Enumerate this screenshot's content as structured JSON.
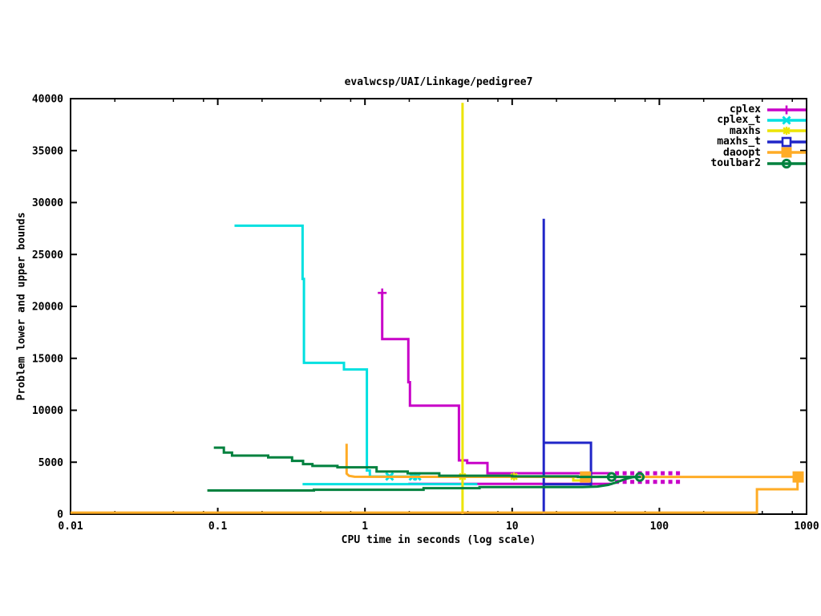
{
  "chart_data": {
    "type": "line",
    "title": "evalwcsp/UAI/Linkage/pedigree7",
    "xlabel": "CPU time in seconds (log scale)",
    "ylabel": "Problem lower and upper bounds",
    "x_scale": "log",
    "grid": false,
    "legend_position": "top-right-inside",
    "xlim": [
      0.01,
      1000
    ],
    "ylim": [
      0,
      40000
    ],
    "x_ticks": [
      {
        "v": 0.01,
        "l": "0.01"
      },
      {
        "v": 0.1,
        "l": "0.1"
      },
      {
        "v": 1,
        "l": "1"
      },
      {
        "v": 10,
        "l": "10"
      },
      {
        "v": 100,
        "l": "100"
      },
      {
        "v": 1000,
        "l": "1000"
      }
    ],
    "x_minor_mults": [
      2,
      5,
      8
    ],
    "y_ticks": [
      {
        "v": 0,
        "l": "0"
      },
      {
        "v": 5000,
        "l": "5000"
      },
      {
        "v": 10000,
        "l": "10000"
      },
      {
        "v": 15000,
        "l": "15000"
      },
      {
        "v": 20000,
        "l": "20000"
      },
      {
        "v": 25000,
        "l": "25000"
      },
      {
        "v": 30000,
        "l": "30000"
      },
      {
        "v": 35000,
        "l": "35000"
      },
      {
        "v": 40000,
        "l": "40000"
      }
    ],
    "series": [
      {
        "name": "cplex",
        "color": "#c800c8",
        "marker": "plus",
        "lines": [
          {
            "points": [
              [
                1.31,
                21300
              ],
              [
                1.31,
                16860
              ],
              [
                1.97,
                16860
              ],
              [
                1.97,
                12700
              ],
              [
                2.02,
                12700
              ],
              [
                2.02,
                10450
              ],
              [
                4.35,
                10450
              ],
              [
                4.35,
                5170
              ],
              [
                4.95,
                5170
              ],
              [
                4.95,
                4930
              ],
              [
                6.8,
                4930
              ],
              [
                6.8,
                3940
              ],
              [
                48,
                3940
              ]
            ]
          },
          {
            "points": [
              [
                50,
                3940
              ],
              [
                143,
                3940
              ]
            ],
            "dash": true,
            "width": 5
          },
          {
            "points": [
              [
                1.97,
                2910
              ],
              [
                48,
                2910
              ]
            ]
          },
          {
            "points": [
              [
                50,
                3110
              ],
              [
                143,
                3110
              ]
            ],
            "dash": true,
            "width": 5
          }
        ],
        "markers": [
          [
            1.31,
            21300
          ]
        ]
      },
      {
        "name": "cplex_t",
        "color": "#00e0e0",
        "marker": "cross",
        "lines": [
          {
            "points": [
              [
                0.13,
                27770
              ],
              [
                0.377,
                27770
              ],
              [
                0.377,
                22650
              ],
              [
                0.385,
                22650
              ],
              [
                0.385,
                14560
              ],
              [
                0.72,
                14560
              ],
              [
                0.72,
                13930
              ],
              [
                1.03,
                13930
              ],
              [
                1.03,
                4200
              ],
              [
                1.08,
                4200
              ],
              [
                1.08,
                3620
              ],
              [
                2.35,
                3620
              ]
            ]
          },
          {
            "points": [
              [
                0.377,
                2890
              ],
              [
                5.8,
                2890
              ]
            ]
          }
        ],
        "markers": [
          [
            1.47,
            3620
          ],
          [
            2.12,
            3620
          ],
          [
            2.26,
            3620
          ]
        ]
      },
      {
        "name": "maxhs",
        "color": "#ece400",
        "marker": "star",
        "lines": [
          {
            "points": [
              [
                4.6,
                0
              ],
              [
                4.6,
                39600
              ]
            ]
          },
          {
            "points": [
              [
                4.6,
                3620
              ],
              [
                26,
                3620
              ],
              [
                26,
                3240
              ],
              [
                31.5,
                3240
              ]
            ]
          }
        ],
        "markers": [
          [
            4.6,
            3620
          ],
          [
            10.3,
            3620
          ]
        ]
      },
      {
        "name": "maxhs_t",
        "color": "#2026c8",
        "marker": "osquare",
        "lines": [
          {
            "points": [
              [
                16.4,
                0
              ],
              [
                16.4,
                28430
              ]
            ]
          },
          {
            "points": [
              [
                16.4,
                6870
              ],
              [
                34.3,
                6870
              ],
              [
                34.3,
                2630
              ]
            ]
          },
          {
            "points": [
              [
                16.4,
                2870
              ],
              [
                34.6,
                2870
              ]
            ]
          }
        ],
        "markers": []
      },
      {
        "name": "daoopt",
        "color": "#ffac26",
        "marker": "fsquare",
        "lines": [
          {
            "points": [
              [
                0.75,
                6770
              ],
              [
                0.75,
                3900
              ],
              [
                0.78,
                3690
              ],
              [
                0.85,
                3600
              ],
              [
                31.5,
                3580
              ],
              [
                877,
                3580
              ]
            ]
          },
          {
            "points": [
              [
                0.01,
                150
              ],
              [
                460,
                150
              ],
              [
                460,
                2390
              ],
              [
                868,
                2390
              ],
              [
                868,
                3580
              ]
            ]
          }
        ],
        "markers": [
          [
            31.5,
            3580
          ],
          [
            877,
            3580
          ]
        ]
      },
      {
        "name": "toulbar2",
        "color": "#00813e",
        "marker": "ocircle",
        "lines": [
          {
            "points": [
              [
                0.094,
                6400
              ],
              [
                0.11,
                6400
              ],
              [
                0.11,
                5930
              ],
              [
                0.125,
                5930
              ],
              [
                0.125,
                5640
              ],
              [
                0.22,
                5640
              ],
              [
                0.22,
                5460
              ],
              [
                0.32,
                5460
              ],
              [
                0.32,
                5130
              ],
              [
                0.38,
                5130
              ],
              [
                0.38,
                4820
              ],
              [
                0.44,
                4820
              ],
              [
                0.44,
                4640
              ],
              [
                0.65,
                4640
              ],
              [
                0.65,
                4510
              ],
              [
                1.2,
                4510
              ],
              [
                1.2,
                4100
              ],
              [
                1.95,
                4100
              ],
              [
                1.95,
                3930
              ],
              [
                3.2,
                3930
              ],
              [
                3.2,
                3700
              ],
              [
                10,
                3700
              ],
              [
                10,
                3640
              ],
              [
                28,
                3640
              ],
              [
                28,
                3580
              ],
              [
                75,
                3580
              ]
            ]
          },
          {
            "points": [
              [
                0.085,
                2280
              ],
              [
                0.45,
                2280
              ],
              [
                0.45,
                2350
              ],
              [
                2.5,
                2350
              ],
              [
                2.5,
                2500
              ],
              [
                6,
                2500
              ],
              [
                6,
                2610
              ],
              [
                30,
                2610
              ],
              [
                38,
                2660
              ],
              [
                45,
                2820
              ],
              [
                50,
                3020
              ],
              [
                55,
                3230
              ],
              [
                60,
                3420
              ],
              [
                66,
                3560
              ],
              [
                74,
                3580
              ]
            ]
          }
        ],
        "markers": [
          [
            47.4,
            3580
          ],
          [
            73.6,
            3580
          ]
        ]
      }
    ]
  }
}
